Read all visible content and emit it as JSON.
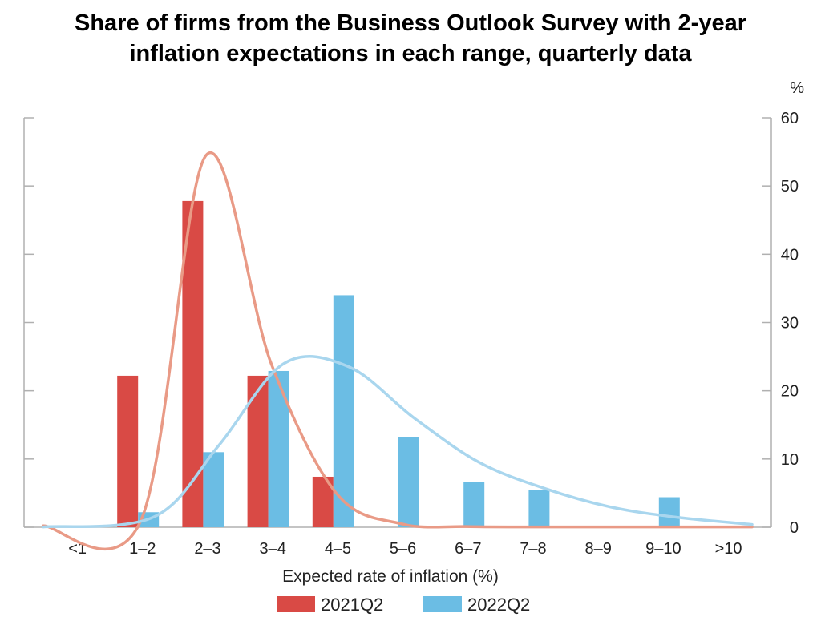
{
  "chart_data": {
    "type": "bar",
    "title_lines": [
      "Share of firms from the Business Outlook Survey with 2-year",
      "inflation expectations in each range, quarterly data"
    ],
    "xlabel": "Expected rate of inflation (%)",
    "yunit": "%",
    "ylim": [
      0,
      60
    ],
    "yticks": [
      0,
      10,
      20,
      30,
      40,
      50,
      60
    ],
    "y_axis_side": "right",
    "categories": [
      "<1",
      "1–2",
      "2–3",
      "3–4",
      "4–5",
      "5–6",
      "6–7",
      "7–8",
      "8–9",
      "9–10",
      ">10"
    ],
    "series": [
      {
        "name": "2021Q2",
        "color": "#d94a45",
        "values": [
          0,
          22.2,
          47.8,
          22.2,
          7.4,
          0,
          0,
          0,
          0,
          0,
          0
        ],
        "curve_color": "#e99a86",
        "curve": [
          0.2,
          1,
          54.5,
          24,
          5,
          0.5,
          0.1,
          0.05,
          0.05,
          0.05,
          0.05
        ]
      },
      {
        "name": "2022Q2",
        "color": "#6bbde4",
        "values": [
          0,
          2.2,
          11,
          22.9,
          34,
          13.2,
          6.6,
          5.5,
          0,
          4.4,
          0
        ],
        "curve_color": "#a9d6ee",
        "curve": [
          0.05,
          1.5,
          12,
          24,
          23.5,
          16,
          9.5,
          5.7,
          3,
          1.5,
          0.4
        ]
      }
    ],
    "legend_position": "bottom",
    "grid": false
  }
}
